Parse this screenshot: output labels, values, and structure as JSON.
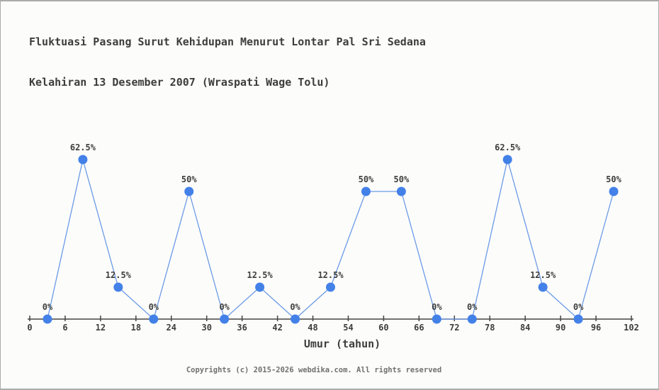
{
  "header": {
    "title_line1": "Fluktuasi Pasang Surut Kehidupan Menurut Lontar Pal Sri Sedana",
    "title_line2": "Kelahiran 13 Desember 2007 (Wraspati Wage Tolu)"
  },
  "chart_data": {
    "type": "line",
    "title": "Fluktuasi Pasang Surut Kehidupan Menurut Lontar Pal Sri Sedana Kelahiran 13 Desember 2007 (Wraspati Wage Tolu)",
    "xlabel": "Umur (tahun)",
    "ylabel": "",
    "x": [
      3,
      9,
      15,
      21,
      27,
      33,
      39,
      45,
      51,
      57,
      63,
      69,
      75,
      81,
      87,
      93,
      99
    ],
    "values": [
      0,
      62.5,
      12.5,
      0,
      50,
      0,
      12.5,
      0,
      12.5,
      50,
      50,
      0,
      0,
      62.5,
      12.5,
      0,
      50
    ],
    "point_labels": [
      "0%",
      "62.5%",
      "12.5%",
      "0%",
      "50%",
      "0%",
      "12.5%",
      "0%",
      "12.5%",
      "50%",
      "50%",
      "0%",
      "0%",
      "62.5%",
      "12.5%",
      "0%",
      "50%"
    ],
    "x_ticks": [
      0,
      6,
      12,
      18,
      24,
      30,
      36,
      42,
      48,
      54,
      60,
      66,
      72,
      78,
      84,
      90,
      96,
      102
    ],
    "xlim": [
      0,
      102
    ],
    "ylim": [
      0,
      100
    ],
    "grid": false,
    "legend": false,
    "colors": {
      "line": "#6b9ae6",
      "marker": "#4381e8",
      "axis": "#444444",
      "text": "#3d3d3d"
    }
  },
  "footer": {
    "copyright": "Copyrights (c) 2015-2026 webdika.com. All rights reserved"
  }
}
